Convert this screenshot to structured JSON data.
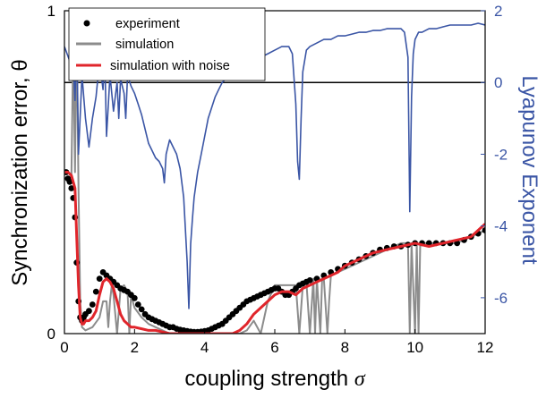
{
  "chart_data": {
    "type": "line",
    "xlabel": "coupling strength",
    "xlabel_symbol": "σ",
    "ylabel_left": "Synchronization error, θ",
    "ylabel_right": "Lyapunov Exponent",
    "xlim": [
      0,
      12
    ],
    "ylim_left": [
      0,
      1
    ],
    "ylim_right": [
      -7,
      2
    ],
    "xticks": [
      "0",
      "2",
      "4",
      "6",
      "8",
      "10",
      "12"
    ],
    "yticks_left": [
      "0",
      "1"
    ],
    "yticks_right": [
      "2",
      "0",
      "-2",
      "-4",
      "-6"
    ],
    "reference_line": {
      "axis": "right",
      "value": 0
    },
    "legend_position": "top-left",
    "colors": {
      "experiment": "#000000",
      "simulation": "#8c8c8c",
      "simulation_noise": "#e0252b",
      "lyapunov": "#3a55a5",
      "right_axis": "#3a55a5"
    },
    "series": [
      {
        "name": "experiment",
        "axis": "left",
        "style": "markers",
        "x": [
          0.05,
          0.1,
          0.15,
          0.2,
          0.25,
          0.3,
          0.35,
          0.4,
          0.45,
          0.5,
          0.55,
          0.6,
          0.7,
          0.8,
          0.9,
          1.0,
          1.1,
          1.2,
          1.3,
          1.4,
          1.5,
          1.6,
          1.7,
          1.8,
          1.9,
          2.0,
          2.1,
          2.2,
          2.3,
          2.4,
          2.5,
          2.6,
          2.7,
          2.8,
          2.9,
          3.0,
          3.1,
          3.2,
          3.3,
          3.4,
          3.5,
          3.6,
          3.7,
          3.8,
          3.9,
          4.0,
          4.1,
          4.2,
          4.3,
          4.4,
          4.5,
          4.6,
          4.7,
          4.8,
          4.9,
          5.0,
          5.1,
          5.2,
          5.3,
          5.4,
          5.5,
          5.6,
          5.7,
          5.8,
          5.9,
          6.0,
          6.1,
          6.2,
          6.3,
          6.4,
          6.5,
          6.6,
          6.7,
          6.8,
          6.9,
          7.0,
          7.2,
          7.4,
          7.6,
          7.8,
          8.0,
          8.2,
          8.4,
          8.6,
          8.8,
          9.0,
          9.2,
          9.4,
          9.6,
          9.8,
          10.0,
          10.2,
          10.4,
          10.6,
          10.8,
          11.0,
          11.2,
          11.4,
          11.6,
          11.8,
          12.0
        ],
        "y": [
          0.5,
          0.48,
          0.47,
          0.45,
          0.42,
          0.36,
          0.22,
          0.1,
          0.05,
          0.04,
          0.05,
          0.06,
          0.07,
          0.09,
          0.13,
          0.17,
          0.19,
          0.18,
          0.17,
          0.16,
          0.15,
          0.14,
          0.135,
          0.13,
          0.12,
          0.11,
          0.09,
          0.075,
          0.06,
          0.05,
          0.045,
          0.04,
          0.035,
          0.03,
          0.025,
          0.02,
          0.02,
          0.015,
          0.012,
          0.01,
          0.008,
          0.006,
          0.005,
          0.005,
          0.006,
          0.008,
          0.01,
          0.015,
          0.02,
          0.025,
          0.03,
          0.04,
          0.05,
          0.06,
          0.07,
          0.08,
          0.09,
          0.1,
          0.105,
          0.11,
          0.115,
          0.12,
          0.125,
          0.13,
          0.135,
          0.14,
          0.14,
          0.13,
          0.12,
          0.12,
          0.13,
          0.14,
          0.15,
          0.155,
          0.16,
          0.165,
          0.17,
          0.18,
          0.19,
          0.2,
          0.21,
          0.22,
          0.23,
          0.24,
          0.25,
          0.26,
          0.265,
          0.27,
          0.27,
          0.275,
          0.28,
          0.28,
          0.28,
          0.28,
          0.28,
          0.28,
          0.28,
          0.29,
          0.3,
          0.31,
          0.32
        ]
      },
      {
        "name": "simulation",
        "axis": "left",
        "style": "line",
        "x": [
          0,
          0.1,
          0.2,
          0.25,
          0.3,
          0.35,
          0.4,
          0.45,
          0.5,
          0.6,
          0.8,
          1.0,
          1.1,
          1.2,
          1.25,
          1.3,
          1.35,
          1.4,
          1.5,
          1.6,
          1.7,
          1.8,
          1.85,
          1.9,
          2.0,
          2.2,
          2.4,
          2.6,
          2.8,
          3.0,
          3.2,
          3.4,
          3.6,
          3.8,
          4.0,
          4.4,
          4.8,
          5.0,
          5.2,
          5.4,
          5.6,
          5.8,
          6.0,
          6.2,
          6.4,
          6.6,
          6.7,
          6.8,
          6.9,
          7.0,
          7.1,
          7.15,
          7.2,
          7.3,
          7.35,
          7.4,
          7.5,
          7.55,
          7.6,
          7.8,
          8.0,
          8.4,
          8.8,
          9.2,
          9.6,
          9.8,
          9.85,
          9.9,
          10.0,
          10.05,
          10.1,
          10.15,
          10.2,
          10.4,
          10.8,
          11.2,
          11.6,
          12.0
        ],
        "y": [
          0.5,
          0.5,
          0.49,
          0.9,
          0.5,
          0.95,
          0.45,
          0.1,
          0.02,
          0.01,
          0.02,
          0.05,
          0.1,
          0.1,
          0.02,
          0.1,
          0.15,
          0.12,
          0.0,
          0.14,
          0.15,
          0.13,
          0.0,
          0.12,
          0.08,
          0.05,
          0.03,
          0.02,
          0.01,
          0.0,
          0.0,
          0.0,
          0.0,
          0.0,
          0.0,
          0.0,
          0.0,
          0.0,
          0.01,
          0.04,
          0.0,
          0.1,
          0.15,
          0.15,
          0.15,
          0.15,
          0.0,
          0.15,
          0.16,
          0.0,
          0.17,
          0.0,
          0.17,
          0.0,
          0.17,
          0.17,
          0.0,
          0.1,
          0.18,
          0.19,
          0.2,
          0.22,
          0.24,
          0.26,
          0.28,
          0.28,
          0.0,
          0.28,
          0.0,
          0.28,
          0.0,
          0.28,
          0.28,
          0.28,
          0.28,
          0.28,
          0.3,
          0.32
        ]
      },
      {
        "name": "simulation with noise",
        "axis": "left",
        "style": "line",
        "x": [
          0,
          0.1,
          0.2,
          0.3,
          0.35,
          0.4,
          0.45,
          0.5,
          0.55,
          0.6,
          0.7,
          0.8,
          0.9,
          1.0,
          1.1,
          1.2,
          1.3,
          1.4,
          1.5,
          1.6,
          1.7,
          1.8,
          1.9,
          2.0,
          2.2,
          2.4,
          2.6,
          2.8,
          3.0,
          3.2,
          3.4,
          3.6,
          3.8,
          4.0,
          4.2,
          4.4,
          4.6,
          4.8,
          5.0,
          5.2,
          5.4,
          5.6,
          5.8,
          6.0,
          6.2,
          6.4,
          6.6,
          6.8,
          7.0,
          7.2,
          7.4,
          7.6,
          7.8,
          8.0,
          8.4,
          8.8,
          9.2,
          9.6,
          10.0,
          10.4,
          10.8,
          11.2,
          11.6,
          12.0
        ],
        "y": [
          0.5,
          0.5,
          0.49,
          0.45,
          0.3,
          0.15,
          0.05,
          0.03,
          0.03,
          0.04,
          0.04,
          0.05,
          0.07,
          0.12,
          0.16,
          0.17,
          0.16,
          0.14,
          0.1,
          0.06,
          0.04,
          0.03,
          0.02,
          0.02,
          0.015,
          0.01,
          0.01,
          0.005,
          0.0,
          0.0,
          0.0,
          0.0,
          0.0,
          0.0,
          0.0,
          0.0,
          0.0,
          0.0,
          0.01,
          0.03,
          0.06,
          0.08,
          0.1,
          0.12,
          0.13,
          0.13,
          0.12,
          0.14,
          0.15,
          0.16,
          0.17,
          0.18,
          0.19,
          0.21,
          0.23,
          0.25,
          0.26,
          0.27,
          0.28,
          0.27,
          0.28,
          0.29,
          0.3,
          0.34
        ]
      },
      {
        "name": "Lyapunov Exponent",
        "axis": "right",
        "style": "line",
        "x": [
          0,
          0.15,
          0.2,
          0.25,
          0.3,
          0.35,
          0.4,
          0.5,
          0.6,
          0.7,
          0.8,
          0.9,
          1.0,
          1.1,
          1.15,
          1.2,
          1.3,
          1.4,
          1.5,
          1.55,
          1.6,
          1.7,
          1.75,
          1.8,
          1.9,
          2.0,
          2.1,
          2.2,
          2.3,
          2.4,
          2.5,
          2.6,
          2.7,
          2.8,
          2.85,
          2.9,
          3.0,
          3.1,
          3.2,
          3.3,
          3.4,
          3.5,
          3.55,
          3.6,
          3.65,
          3.7,
          3.8,
          3.9,
          4.0,
          4.1,
          4.2,
          4.3,
          4.4,
          4.5,
          4.6,
          4.8,
          5.0,
          5.2,
          5.4,
          5.6,
          5.8,
          6.0,
          6.2,
          6.4,
          6.5,
          6.6,
          6.65,
          6.7,
          6.75,
          6.8,
          6.9,
          7.0,
          7.2,
          7.4,
          7.6,
          7.8,
          8.0,
          8.2,
          8.4,
          8.6,
          8.8,
          9.0,
          9.2,
          9.4,
          9.6,
          9.7,
          9.8,
          9.85,
          9.9,
          9.95,
          10.0,
          10.1,
          10.2,
          10.4,
          10.6,
          10.8,
          11.0,
          11.2,
          11.4,
          11.6,
          11.8,
          12.0
        ],
        "y": [
          1.0,
          0.6,
          1.5,
          0.5,
          -0.5,
          1.2,
          -2.0,
          0.2,
          -1.0,
          -1.8,
          -1.0,
          -0.4,
          0.6,
          -0.2,
          0.8,
          -1.5,
          0.2,
          -0.8,
          0.0,
          -1.0,
          0.1,
          -0.3,
          -1.0,
          0.2,
          -0.1,
          -0.3,
          -0.6,
          -0.9,
          -1.3,
          -1.7,
          -1.9,
          -2.1,
          -2.2,
          -2.4,
          -2.8,
          -2.0,
          -1.6,
          -1.8,
          -2.0,
          -2.4,
          -3.2,
          -5.0,
          -6.3,
          -4.5,
          -3.8,
          -3.2,
          -2.5,
          -2.0,
          -1.5,
          -1.0,
          -0.7,
          -0.4,
          -0.2,
          0.0,
          0.1,
          0.3,
          0.4,
          0.5,
          0.6,
          0.7,
          0.8,
          0.9,
          1.0,
          1.0,
          0.8,
          -0.6,
          -2.2,
          -2.7,
          -1.0,
          0.3,
          0.9,
          1.0,
          1.1,
          1.2,
          1.2,
          1.3,
          1.3,
          1.35,
          1.4,
          1.4,
          1.45,
          1.45,
          1.5,
          1.5,
          1.5,
          1.4,
          0.7,
          -3.6,
          -0.4,
          0.8,
          1.2,
          1.4,
          1.4,
          1.5,
          1.5,
          1.55,
          1.6,
          1.6,
          1.6,
          1.6,
          1.65,
          1.6
        ]
      }
    ]
  }
}
